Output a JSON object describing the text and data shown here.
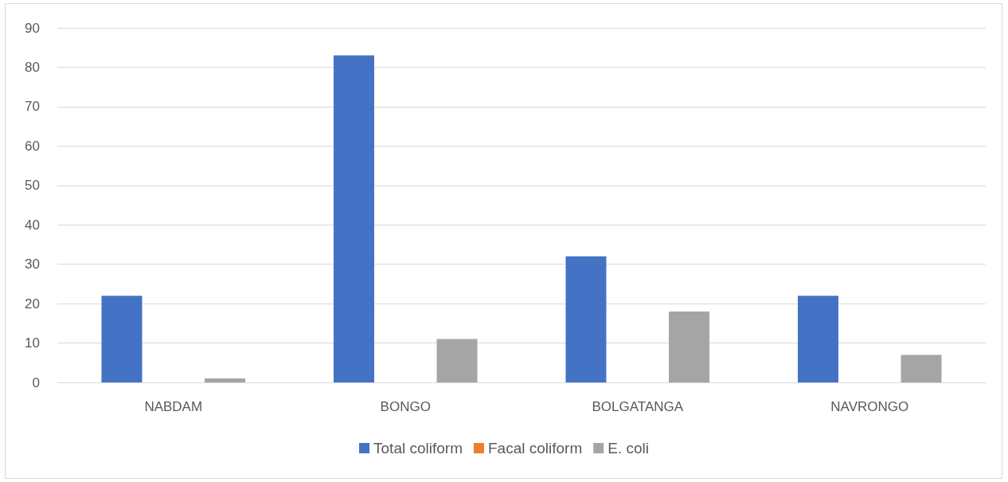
{
  "chart_data": {
    "type": "bar",
    "categories": [
      "NABDAM",
      "BONGO",
      "BOLGATANGA",
      "NAVRONGO"
    ],
    "series": [
      {
        "name": "Total coliform",
        "color": "#4472c4",
        "values": [
          22,
          83,
          32,
          22
        ]
      },
      {
        "name": "Facal coliform",
        "color": "#ed7d31",
        "values": [
          0,
          0,
          0,
          0
        ]
      },
      {
        "name": "E. coli",
        "color": "#a5a5a5",
        "values": [
          1,
          11,
          18,
          7
        ]
      }
    ],
    "ylim": [
      0,
      90
    ],
    "yticks": [
      0,
      10,
      20,
      30,
      40,
      50,
      60,
      70,
      80,
      90
    ],
    "grid": "y",
    "legend": "bottom"
  }
}
